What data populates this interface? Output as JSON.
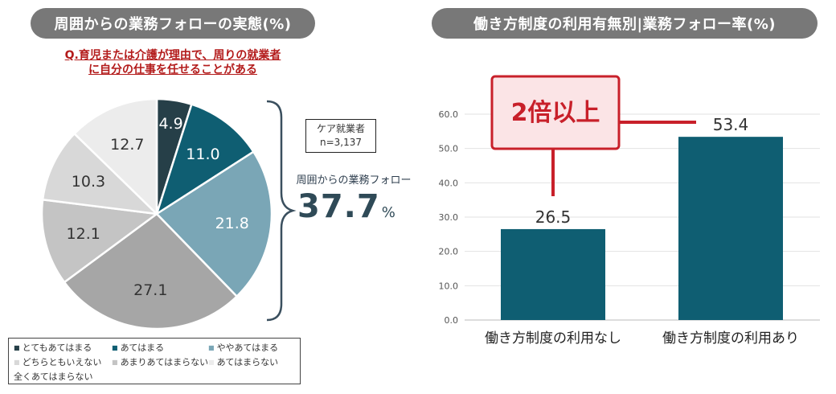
{
  "left_panel": {
    "title": "周囲からの業務フォローの実態(%)",
    "question_line1": "Q.育児または介護が理由で、周りの就業者",
    "question_line2": "に自分の仕事を任せることがある",
    "sample_line1": "ケア就業者",
    "sample_line2": "n=3,137",
    "follow_label": "周囲からの業務フォロー",
    "follow_value": "37.7",
    "follow_unit": "%"
  },
  "right_panel": {
    "title": "働き方制度の利用有無別|業務フォロー率(%)",
    "callout": "2倍以上"
  },
  "chart_data": [
    {
      "type": "pie",
      "title": "周囲からの業務フォローの実態(%)",
      "slices": [
        {
          "label": "とてもあてはまる",
          "value": 4.9,
          "value_label": "4.9",
          "color": "#263f48"
        },
        {
          "label": "あてはまる",
          "value": 11.0,
          "value_label": "11.0",
          "color": "#0f5e72"
        },
        {
          "label": "ややあてはまる",
          "value": 21.8,
          "value_label": "21.8",
          "color": "#7aa6b6"
        },
        {
          "label": "全くあてはまらない",
          "value": 27.1,
          "value_label": "27.1",
          "color": "#a6a6a6"
        },
        {
          "label": "あまりあてはまらない",
          "value": 12.1,
          "value_label": "12.1",
          "color": "#c4c4c4"
        },
        {
          "label": "どちらともいえない",
          "value": 10.3,
          "value_label": "10.3",
          "color": "#d8d8d8"
        },
        {
          "label": "あてはまらない",
          "value": 12.7,
          "value_label": "12.7",
          "color": "#ececec"
        }
      ],
      "legend": [
        [
          "とてもあてはまる",
          "あてはまる",
          "ややあてはまる"
        ],
        [
          "どちらともいえない",
          "あまりあてはまらない",
          "あてはまらない"
        ],
        [
          "全くあてはまらない"
        ]
      ],
      "legend_colors": {
        "とてもあてはまる": "#263f48",
        "あてはまる": "#0f5e72",
        "ややあてはまる": "#7aa6b6",
        "どちらともいえない": "#d8d8d8",
        "あまりあてはまらない": "#c4c4c4",
        "あてはまらない": "#ececec",
        "全くあてはまらない": "#a6a6a6"
      }
    },
    {
      "type": "bar",
      "title": "働き方制度の利用有無別|業務フォロー率(%)",
      "categories": [
        "働き方制度の利用なし",
        "働き方制度の利用あり"
      ],
      "values": [
        26.5,
        53.4
      ],
      "value_labels": [
        "26.5",
        "53.4"
      ],
      "color": "#0f5e72",
      "ylim": [
        0,
        60
      ],
      "yticks": [
        "0.0",
        "10.0",
        "20.0",
        "30.0",
        "40.0",
        "50.0",
        "60.0"
      ],
      "grid": true,
      "annotation": "2倍以上"
    }
  ]
}
